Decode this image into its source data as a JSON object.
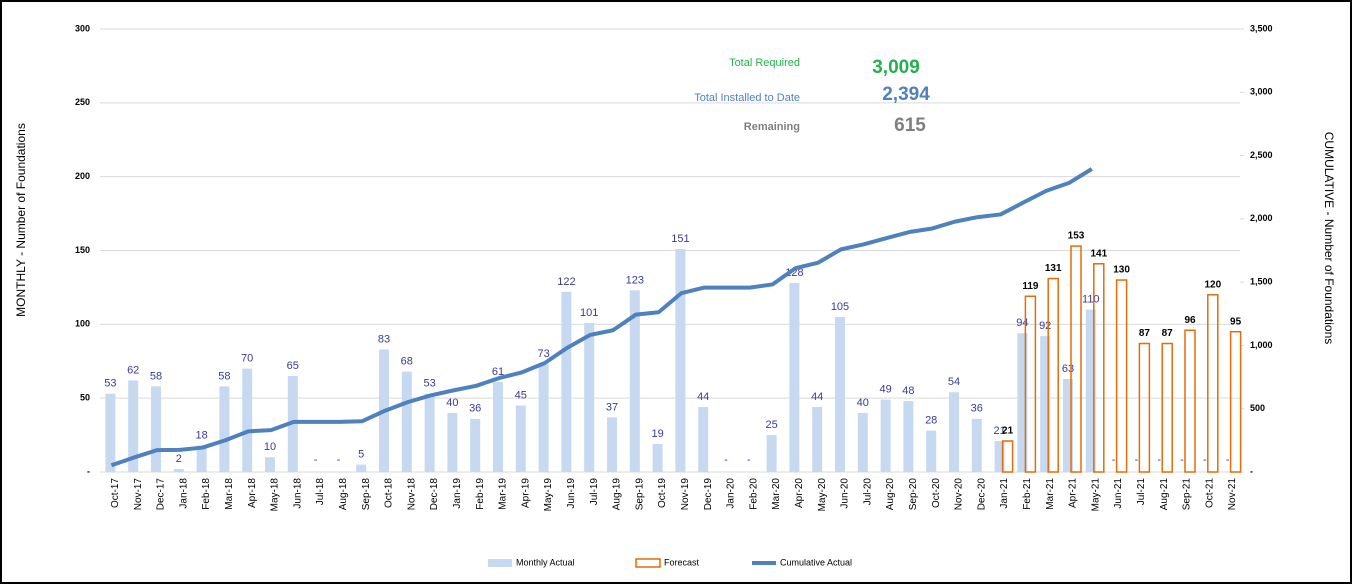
{
  "chart_data": {
    "type": "bar",
    "ylabel": "MONTHLY  -  Number of Foundations",
    "y2label": "CUMULATIVE  -  Number of Foundations",
    "categories": [
      "Oct-17",
      "Nov-17",
      "Dec-17",
      "Jan-18",
      "Feb-18",
      "Mar-18",
      "Apr-18",
      "May-18",
      "Jun-18",
      "Jul-18",
      "Aug-18",
      "Sep-18",
      "Oct-18",
      "Nov-18",
      "Dec-18",
      "Jan-19",
      "Feb-19",
      "Mar-19",
      "Apr-19",
      "May-19",
      "Jun-19",
      "Jul-19",
      "Aug-19",
      "Sep-19",
      "Oct-19",
      "Nov-19",
      "Dec-19",
      "Jan-20",
      "Feb-20",
      "Mar-20",
      "Apr-20",
      "May-20",
      "Jun-20",
      "Jul-20",
      "Aug-20",
      "Sep-20",
      "Oct-20",
      "Nov-20",
      "Dec-20",
      "Jan-21",
      "Feb-21",
      "Mar-21",
      "Apr-21",
      "May-21",
      "Jun-21",
      "Jul-21",
      "Aug-21",
      "Sep-21",
      "Oct-21",
      "Nov-21"
    ],
    "series": [
      {
        "name": "Monthly Actual",
        "color": "#c6d9f1",
        "label_color": "#3a3a98",
        "values": [
          53,
          62,
          58,
          2,
          18,
          58,
          70,
          10,
          65,
          0,
          0,
          5,
          83,
          68,
          53,
          40,
          36,
          61,
          45,
          73,
          122,
          101,
          37,
          123,
          19,
          151,
          44,
          0,
          0,
          25,
          128,
          44,
          105,
          40,
          49,
          48,
          28,
          54,
          36,
          21,
          94,
          92,
          63,
          110,
          0,
          0,
          0,
          0,
          0,
          0
        ],
        "value_labels": [
          "53",
          "62",
          "58",
          "2",
          "18",
          "58",
          "70",
          "10",
          "65",
          "-",
          "-",
          "5",
          "83",
          "68",
          "53",
          "40",
          "36",
          "61",
          "45",
          "73",
          "122",
          "101",
          "37",
          "123",
          "19",
          "151",
          "44",
          "-",
          "-",
          "25",
          "128",
          "44",
          "105",
          "40",
          "49",
          "48",
          "28",
          "54",
          "36",
          "21",
          "94",
          "92",
          "63",
          "110",
          "-",
          "-",
          "-",
          "-",
          "-",
          "-"
        ]
      },
      {
        "name": "Forecast",
        "color": "#e46c0a",
        "label_color": "#000000",
        "values": [
          null,
          null,
          null,
          null,
          null,
          null,
          null,
          null,
          null,
          null,
          null,
          null,
          null,
          null,
          null,
          null,
          null,
          null,
          null,
          null,
          null,
          null,
          null,
          null,
          null,
          null,
          null,
          null,
          null,
          null,
          null,
          null,
          null,
          null,
          null,
          null,
          null,
          null,
          null,
          21,
          119,
          131,
          153,
          141,
          130,
          87,
          87,
          96,
          120,
          95
        ]
      },
      {
        "name": "Cumulative Actual",
        "color": "#4f81bd",
        "type": "line",
        "axis": "y2",
        "values": [
          53,
          115,
          173,
          175,
          193,
          251,
          321,
          331,
          396,
          396,
          396,
          401,
          484,
          552,
          605,
          645,
          681,
          742,
          787,
          860,
          982,
          1083,
          1120,
          1243,
          1262,
          1413,
          1457,
          1457,
          1457,
          1482,
          1610,
          1654,
          1759,
          1799,
          1848,
          1896,
          1924,
          1978,
          2014,
          2035,
          2129,
          2221,
          2284,
          2394,
          null,
          null,
          null,
          null,
          null,
          null
        ]
      }
    ],
    "ylim": [
      0,
      300
    ],
    "yticks": [
      {
        "value": 0,
        "label": "-"
      },
      50,
      100,
      150,
      200,
      250,
      300
    ],
    "y2lim": [
      0,
      3500
    ],
    "y2ticks": [
      {
        "value": 0,
        "label": "-"
      },
      500,
      {
        "value": 1000,
        "label": "1,000"
      },
      {
        "value": 1500,
        "label": "1,500"
      },
      {
        "value": 2000,
        "label": "2,000"
      },
      {
        "value": 2500,
        "label": "2,500"
      },
      {
        "value": 3000,
        "label": "3,000"
      },
      {
        "value": 3500,
        "label": "3,500"
      }
    ],
    "grid": true,
    "legend": "bottom",
    "annotations": [
      {
        "text": "Total Required",
        "value": 3009,
        "value_label": "3,009",
        "color": "#22b14c"
      },
      {
        "text": "Total Installed to Date",
        "value": 2394,
        "value_label": "2,394",
        "color": "#4f81bd"
      },
      {
        "text": "Remaining",
        "value": 615,
        "value_label": "615",
        "color": "#7f7f7f"
      }
    ]
  }
}
